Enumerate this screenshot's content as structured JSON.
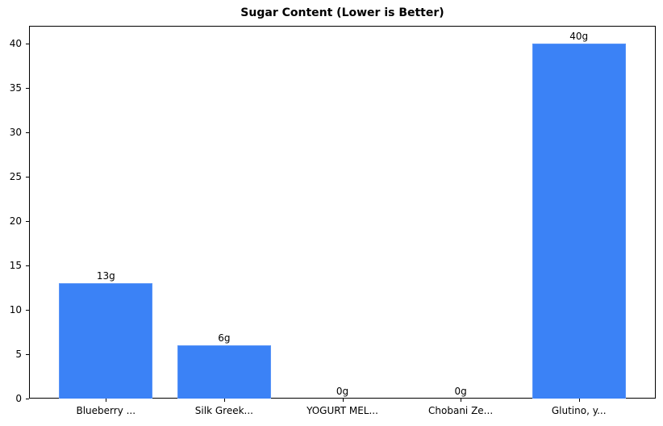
{
  "chart_data": {
    "type": "bar",
    "title": "Sugar Content (Lower is Better)",
    "xlabel": "",
    "ylabel": "",
    "categories": [
      "Blueberry ...",
      "Silk Greek...",
      "YOGURT MEL...",
      "Chobani Ze...",
      "Glutino, y..."
    ],
    "values": [
      13,
      6,
      0,
      0,
      40
    ],
    "value_labels": [
      "13g",
      "6g",
      "0g",
      "0g",
      "40g"
    ],
    "ylim": [
      0,
      42
    ],
    "yticks": [
      0,
      5,
      10,
      15,
      20,
      25,
      30,
      35,
      40
    ],
    "grid": false,
    "legend": null,
    "bar_color": "#3b82f6"
  }
}
